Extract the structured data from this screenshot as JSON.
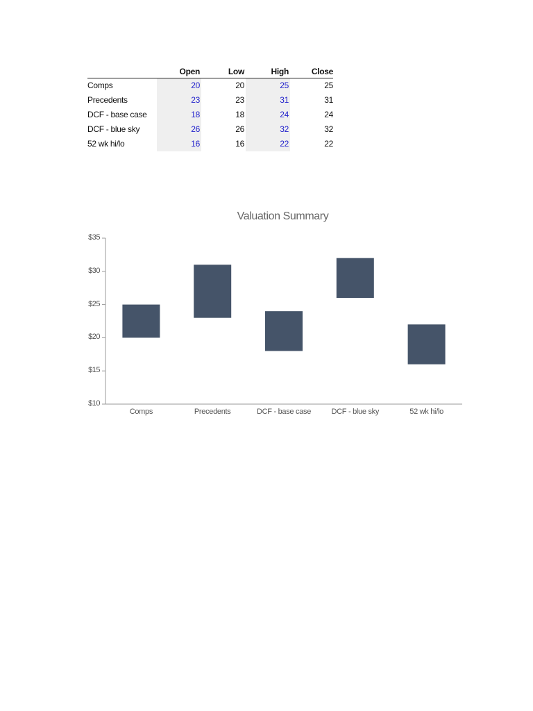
{
  "table": {
    "headers": [
      "",
      "Open",
      "Low",
      "High",
      "Close"
    ],
    "rows": [
      {
        "label": "Comps",
        "open": "20",
        "low": "20",
        "high": "25",
        "close": "25"
      },
      {
        "label": "Precedents",
        "open": "23",
        "low": "23",
        "high": "31",
        "close": "31"
      },
      {
        "label": "DCF - base case",
        "open": "18",
        "low": "18",
        "high": "24",
        "close": "24"
      },
      {
        "label": "DCF - blue sky",
        "open": "26",
        "low": "26",
        "high": "32",
        "close": "32"
      },
      {
        "label": "52 wk hi/lo",
        "open": "16",
        "low": "16",
        "high": "22",
        "close": "22"
      }
    ]
  },
  "chart_data": {
    "type": "bar",
    "subtype": "floating-range (candlestick-style)",
    "title": "Valuation Summary",
    "xlabel": "",
    "ylabel": "",
    "categories": [
      "Comps",
      "Precedents",
      "DCF - base case",
      "DCF - blue sky",
      "52 wk hi/lo"
    ],
    "series": [
      {
        "name": "Open",
        "values": [
          20,
          23,
          18,
          26,
          16
        ]
      },
      {
        "name": "Low",
        "values": [
          20,
          23,
          18,
          26,
          16
        ]
      },
      {
        "name": "High",
        "values": [
          25,
          31,
          24,
          32,
          22
        ]
      },
      {
        "name": "Close",
        "values": [
          25,
          31,
          24,
          32,
          22
        ]
      }
    ],
    "ranges": [
      {
        "category": "Comps",
        "low": 20,
        "high": 25
      },
      {
        "category": "Precedents",
        "low": 23,
        "high": 31
      },
      {
        "category": "DCF - base case",
        "low": 18,
        "high": 24
      },
      {
        "category": "DCF - blue sky",
        "low": 26,
        "high": 32
      },
      {
        "category": "52 wk hi/lo",
        "low": 16,
        "high": 22
      }
    ],
    "yticks": [
      "$10",
      "$15",
      "$20",
      "$25",
      "$30",
      "$35"
    ],
    "ylim": [
      10,
      35
    ],
    "grid": false,
    "legend": "none",
    "bar_color": "#455469",
    "axis_color": "#999999"
  }
}
